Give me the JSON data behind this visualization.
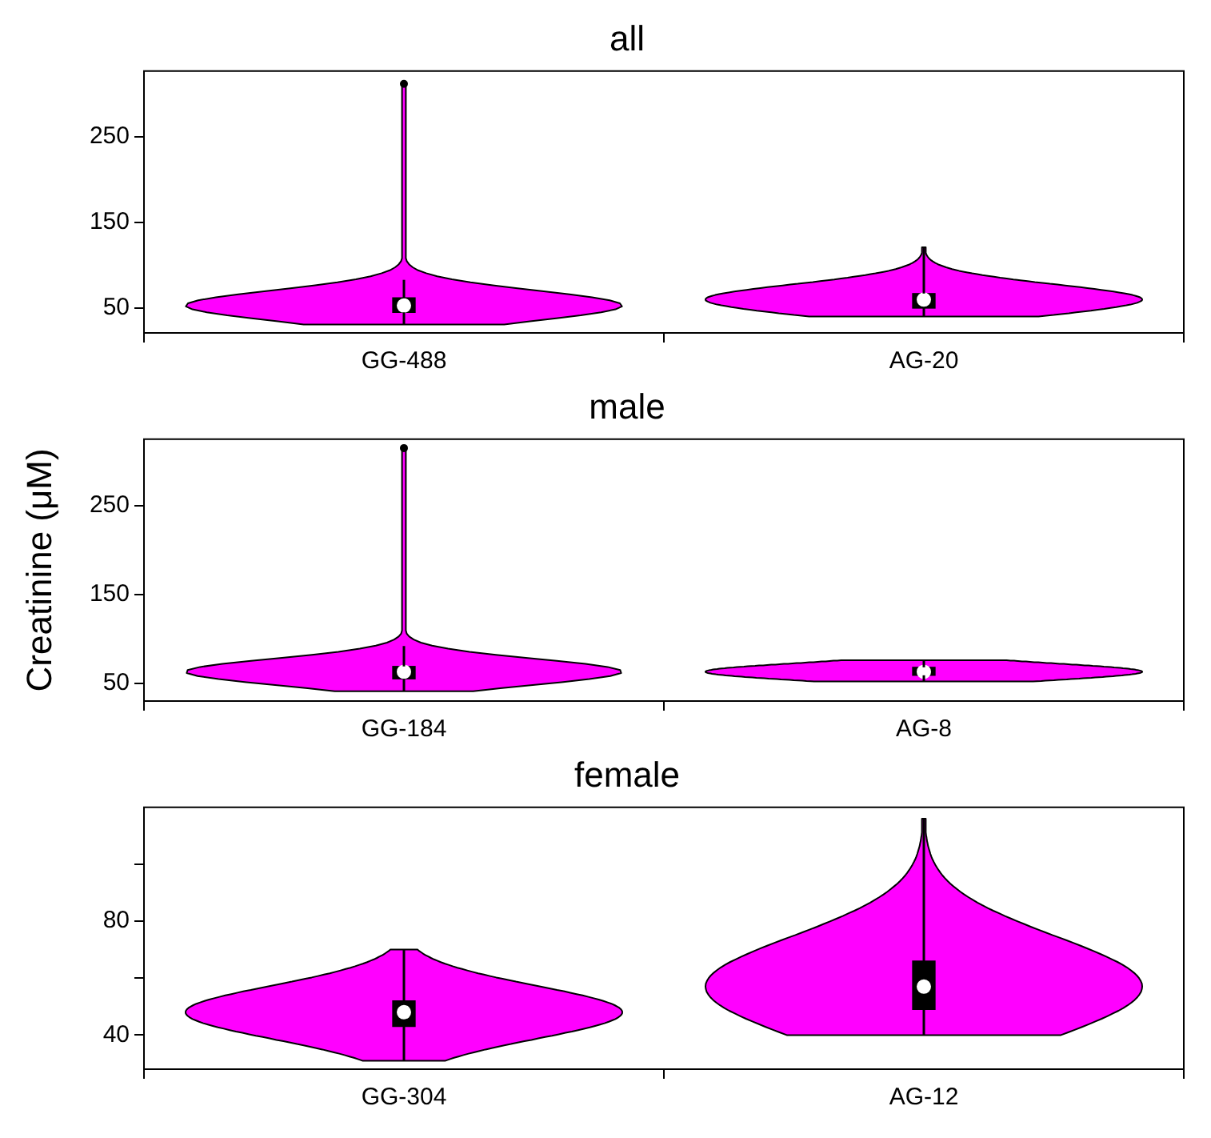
{
  "chart_data": [
    {
      "type": "box",
      "title": "all",
      "categories": [
        "GG-488",
        "AG-20"
      ],
      "ylim": [
        21,
        327
      ],
      "yticks": [
        50,
        150,
        250
      ],
      "series": [
        {
          "color": "#000000",
          "boxes": [
            {
              "low": 31,
              "q1": 45,
              "median": 53,
              "q3": 62,
              "high": 83,
              "outliers": [
                312
              ]
            },
            {
              "low": 40,
              "q1": 50,
              "median": 60,
              "q3": 67,
              "high": 121
            }
          ]
        }
      ]
    },
    {
      "type": "box",
      "title": "male",
      "ylabel": "Creatinine (μM)",
      "categories": [
        "GG-184",
        "AG-8"
      ],
      "ylim": [
        30,
        325
      ],
      "yticks": [
        50,
        150,
        250
      ],
      "series": [
        {
          "color": "#000000",
          "boxes": [
            {
              "low": 41,
              "q1": 55,
              "median": 63,
              "q3": 69,
              "high": 92,
              "outliers": [
                315
              ]
            },
            {
              "low": 52,
              "q1": 59,
              "median": 63,
              "q3": 68,
              "high": 76
            }
          ]
        }
      ]
    },
    {
      "type": "box",
      "title": "female",
      "categories": [
        "GG-304",
        "AG-12"
      ],
      "ylim": [
        28,
        120
      ],
      "yticks": [
        40,
        {
          "value": 60,
          "label": null
        },
        80,
        {
          "value": 100,
          "label": null
        }
      ],
      "series": [
        {
          "color": "#000000",
          "boxes": [
            {
              "low": 31,
              "q1": 43,
              "median": 48,
              "q3": 52,
              "high": 70
            },
            {
              "low": 40,
              "q1": 49,
              "median": 57,
              "q3": 66,
              "high": 116
            }
          ]
        }
      ]
    }
  ]
}
